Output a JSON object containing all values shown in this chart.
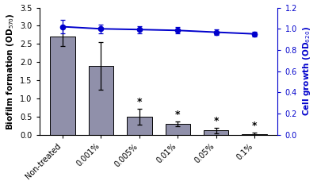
{
  "categories": [
    "Non-treated",
    "0.001%",
    "0.005%",
    "0.01%",
    "0.05%",
    "0.1%"
  ],
  "bar_values": [
    2.7,
    1.9,
    0.5,
    0.3,
    0.12,
    0.02
  ],
  "bar_errors": [
    0.25,
    0.65,
    0.22,
    0.07,
    0.07,
    0.04
  ],
  "bar_color": "#9090aa",
  "line_values": [
    1.02,
    1.0,
    0.993,
    0.985,
    0.968,
    0.952
  ],
  "line_errors": [
    0.065,
    0.04,
    0.035,
    0.03,
    0.028,
    0.022
  ],
  "line_color": "#0000cc",
  "left_ylabel": "Biofilm formation (OD$_{570}$)",
  "right_ylabel": "Cell growth (OD$_{620}$)",
  "left_ylim": [
    0,
    3.5
  ],
  "right_ylim": [
    0.0,
    1.2
  ],
  "left_yticks": [
    0.0,
    0.5,
    1.0,
    1.5,
    2.0,
    2.5,
    3.0,
    3.5
  ],
  "right_yticks": [
    0.0,
    0.2,
    0.4,
    0.6,
    0.8,
    1.0,
    1.2
  ],
  "significant": [
    false,
    false,
    true,
    true,
    true,
    true
  ],
  "background_color": "#ffffff"
}
